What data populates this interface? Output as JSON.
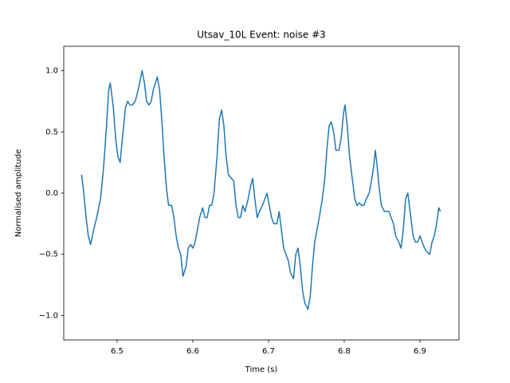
{
  "chart_data": {
    "type": "line",
    "title": "Utsav_10L Event: noise #3",
    "x_label": "Time (s)",
    "y_label": "Normalised amplitude",
    "xlim": [
      6.4295,
      6.9516
    ],
    "ylim": [
      -1.2,
      1.2
    ],
    "xticks": [
      6.5,
      6.6,
      6.7,
      6.8,
      6.9
    ],
    "yticks": [
      {
        "value": -1.0,
        "label": "−1.0"
      },
      {
        "value": -0.5,
        "label": "−0.5"
      },
      {
        "value": 0.0,
        "label": "0.0"
      },
      {
        "value": 0.5,
        "label": "0.5"
      },
      {
        "value": 1.0,
        "label": "1.0"
      }
    ],
    "grid": false,
    "x": [
      6.453,
      6.456,
      6.459,
      6.462,
      6.465,
      6.469,
      6.473,
      6.478,
      6.482,
      6.486,
      6.489,
      6.491,
      6.495,
      6.498,
      6.501,
      6.504,
      6.507,
      6.511,
      6.514,
      6.517,
      6.52,
      6.524,
      6.528,
      6.533,
      6.536,
      6.539,
      6.542,
      6.545,
      6.548,
      6.553,
      6.556,
      6.559,
      6.562,
      6.565,
      6.568,
      6.572,
      6.575,
      6.578,
      6.581,
      6.584,
      6.587,
      6.591,
      6.594,
      6.597,
      6.6,
      6.603,
      6.606,
      6.609,
      6.613,
      6.616,
      6.619,
      6.622,
      6.625,
      6.628,
      6.632,
      6.635,
      6.638,
      6.641,
      6.644,
      6.647,
      6.651,
      6.654,
      6.657,
      6.66,
      6.663,
      6.666,
      6.669,
      6.673,
      6.676,
      6.679,
      6.682,
      6.685,
      6.688,
      6.692,
      6.695,
      6.698,
      6.701,
      6.704,
      6.707,
      6.711,
      6.714,
      6.717,
      6.72,
      6.723,
      6.726,
      6.729,
      6.733,
      6.736,
      6.739,
      6.742,
      6.745,
      6.748,
      6.752,
      6.755,
      6.758,
      6.761,
      6.764,
      6.767,
      6.771,
      6.774,
      6.777,
      6.78,
      6.783,
      6.786,
      6.789,
      6.793,
      6.796,
      6.799,
      6.801,
      6.804,
      6.807,
      6.811,
      6.814,
      6.817,
      6.82,
      6.823,
      6.826,
      6.829,
      6.833,
      6.836,
      6.839,
      6.841,
      6.843,
      6.846,
      6.849,
      6.853,
      6.856,
      6.859,
      6.862,
      6.865,
      6.868,
      6.872,
      6.875,
      6.878,
      6.881,
      6.884,
      6.887,
      6.891,
      6.894,
      6.897,
      6.9,
      6.903,
      6.906,
      6.909,
      6.913,
      6.916,
      6.919,
      6.922,
      6.925,
      6.927
    ],
    "series": [
      {
        "color": "#1f77b4",
        "values": [
          0.15,
          0.0,
          -0.2,
          -0.35,
          -0.42,
          -0.3,
          -0.2,
          -0.05,
          0.2,
          0.55,
          0.85,
          0.9,
          0.7,
          0.45,
          0.3,
          0.25,
          0.45,
          0.7,
          0.75,
          0.72,
          0.72,
          0.75,
          0.85,
          1.0,
          0.9,
          0.75,
          0.72,
          0.75,
          0.85,
          0.95,
          0.85,
          0.6,
          0.3,
          0.05,
          -0.1,
          -0.1,
          -0.2,
          -0.35,
          -0.45,
          -0.5,
          -0.68,
          -0.6,
          -0.45,
          -0.42,
          -0.45,
          -0.4,
          -0.3,
          -0.2,
          -0.12,
          -0.2,
          -0.2,
          -0.1,
          -0.1,
          0.0,
          0.3,
          0.6,
          0.68,
          0.55,
          0.3,
          0.15,
          0.12,
          0.1,
          -0.1,
          -0.2,
          -0.2,
          -0.1,
          -0.15,
          -0.05,
          0.05,
          0.12,
          -0.05,
          -0.2,
          -0.15,
          -0.1,
          -0.05,
          0.0,
          -0.1,
          -0.2,
          -0.25,
          -0.25,
          -0.15,
          -0.3,
          -0.45,
          -0.5,
          -0.55,
          -0.65,
          -0.7,
          -0.5,
          -0.45,
          -0.6,
          -0.8,
          -0.9,
          -0.95,
          -0.85,
          -0.6,
          -0.4,
          -0.3,
          -0.2,
          -0.05,
          0.1,
          0.35,
          0.55,
          0.58,
          0.5,
          0.35,
          0.35,
          0.45,
          0.65,
          0.72,
          0.55,
          0.3,
          0.1,
          -0.05,
          -0.1,
          -0.08,
          -0.1,
          -0.1,
          -0.05,
          0.0,
          0.1,
          0.22,
          0.35,
          0.25,
          0.05,
          -0.1,
          -0.15,
          -0.15,
          -0.15,
          -0.2,
          -0.25,
          -0.35,
          -0.4,
          -0.45,
          -0.3,
          -0.05,
          0.0,
          -0.15,
          -0.35,
          -0.4,
          -0.4,
          -0.35,
          -0.4,
          -0.45,
          -0.48,
          -0.5,
          -0.4,
          -0.35,
          -0.25,
          -0.12,
          -0.15
        ]
      }
    ]
  }
}
